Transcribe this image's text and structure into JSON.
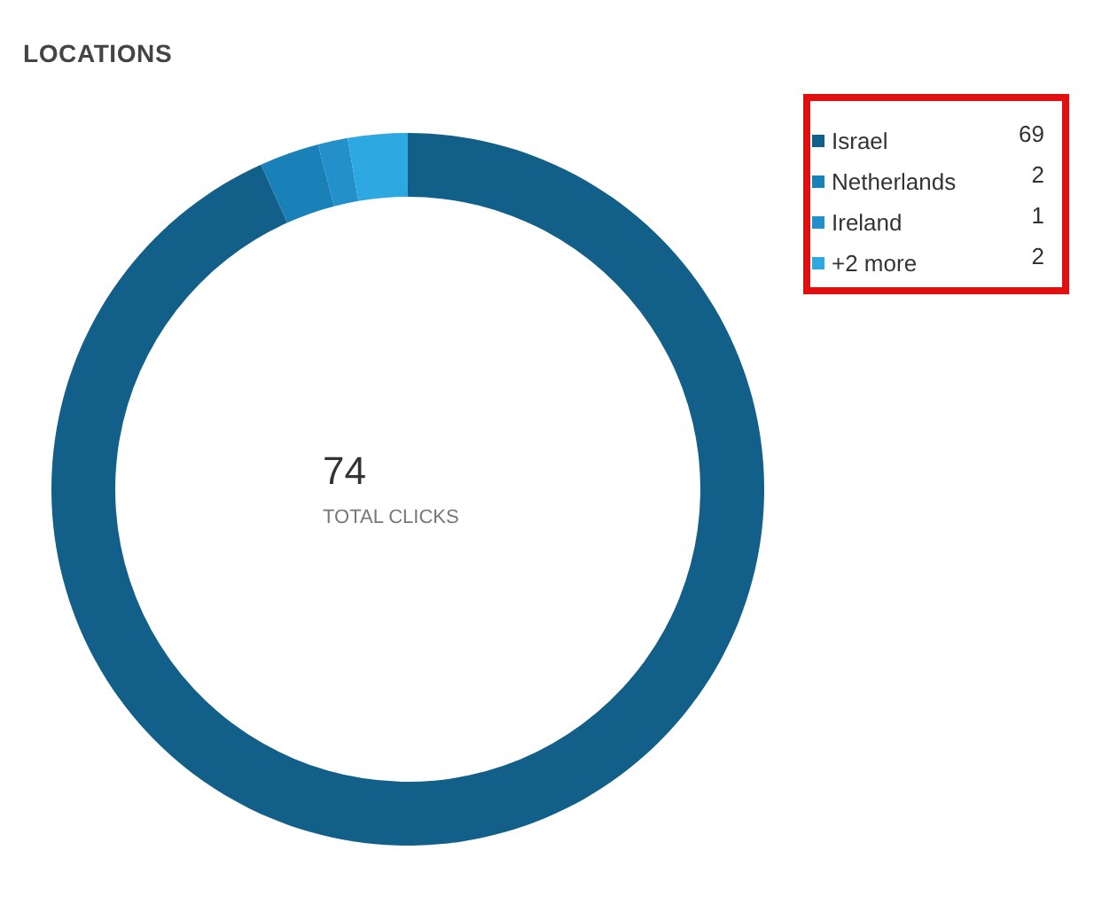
{
  "chart_data": {
    "type": "donut",
    "title": "LOCATIONS",
    "categories": [
      "Israel",
      "Netherlands",
      "Ireland",
      "+2 more"
    ],
    "values": [
      69,
      2,
      1,
      2
    ],
    "colors": [
      "#126089",
      "#1a80b8",
      "#2390cc",
      "#2ea8e0"
    ],
    "data_labels": true,
    "legend": "top right",
    "annotations": [
      "74",
      "TOTAL CLICKS"
    ]
  }
}
